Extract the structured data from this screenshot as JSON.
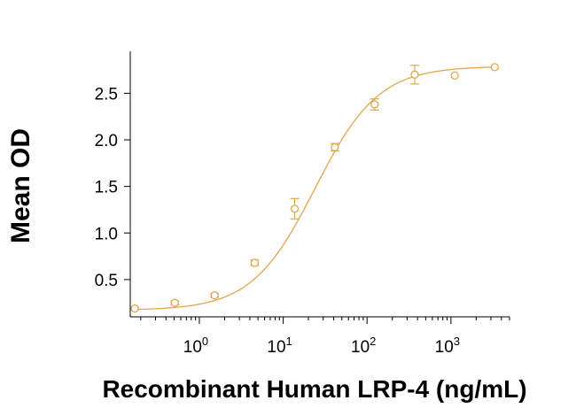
{
  "chart_data": {
    "type": "scatter",
    "title": "",
    "xlabel": "Recombinant Human LRP-4 (ng/mL)",
    "ylabel": "Mean OD",
    "x_scale": "log",
    "xlim": [
      0.15,
      5000
    ],
    "ylim": [
      0.1,
      2.95
    ],
    "x_ticks": [
      {
        "value": 1,
        "base": "10",
        "exp": "0"
      },
      {
        "value": 10,
        "base": "10",
        "exp": "1"
      },
      {
        "value": 100,
        "base": "10",
        "exp": "2"
      },
      {
        "value": 1000,
        "base": "10",
        "exp": "3"
      }
    ],
    "y_ticks": [
      {
        "value": 0.5,
        "label": "0.5"
      },
      {
        "value": 1.0,
        "label": "1.0"
      },
      {
        "value": 1.5,
        "label": "1.5"
      },
      {
        "value": 2.0,
        "label": "2.0"
      },
      {
        "value": 2.5,
        "label": "2.5"
      }
    ],
    "grid": false,
    "color": "#e3a650",
    "points": [
      {
        "x": 0.17,
        "y": 0.19,
        "err": 0.0
      },
      {
        "x": 0.51,
        "y": 0.25,
        "err": 0.02
      },
      {
        "x": 1.52,
        "y": 0.33,
        "err": 0.02
      },
      {
        "x": 4.57,
        "y": 0.68,
        "err": 0.03
      },
      {
        "x": 13.7,
        "y": 1.26,
        "err": 0.11
      },
      {
        "x": 41.2,
        "y": 1.92,
        "err": 0.04
      },
      {
        "x": 123,
        "y": 2.38,
        "err": 0.06
      },
      {
        "x": 370,
        "y": 2.7,
        "err": 0.1
      },
      {
        "x": 1111,
        "y": 2.69,
        "err": 0.0
      },
      {
        "x": 3333,
        "y": 2.78,
        "err": 0.0
      }
    ],
    "fit": {
      "model": "4PL",
      "bottom": 0.17,
      "top": 2.79,
      "ec50": 24,
      "hill": 1.15
    }
  }
}
